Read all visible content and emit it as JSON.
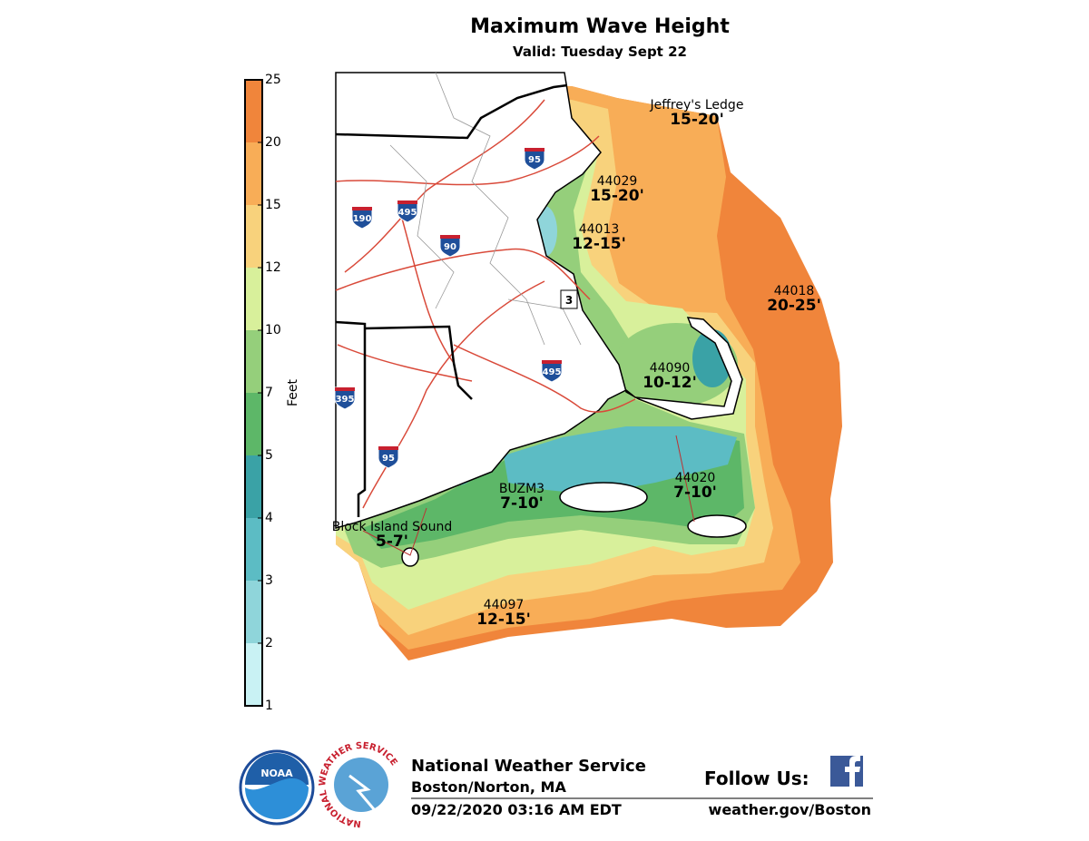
{
  "title": "Maximum Wave Height",
  "subtitle": "Valid: Tuesday Sept 22",
  "colorbar": {
    "label": "Feet",
    "ticks": [
      1,
      2,
      3,
      4,
      5,
      7,
      10,
      12,
      15,
      20,
      25
    ],
    "colors": [
      "#c9f2f4",
      "#8fd5da",
      "#5cbcc4",
      "#3aa2a6",
      "#5db768",
      "#95cf7b",
      "#d8f09b",
      "#f8d27c",
      "#f8ad57",
      "#f0853b"
    ]
  },
  "buoys": [
    {
      "id": "Jeffrey's Ledge",
      "range": "15-20'"
    },
    {
      "id": "44029",
      "range": "15-20'"
    },
    {
      "id": "44013",
      "range": "12-15'"
    },
    {
      "id": "44018",
      "range": "20-25'"
    },
    {
      "id": "44090",
      "range": "10-12'"
    },
    {
      "id": "BUZM3",
      "range": "7-10'"
    },
    {
      "id": "44020",
      "range": "7-10'"
    },
    {
      "id": "Block Island Sound",
      "range": "5-7'"
    },
    {
      "id": "44097",
      "range": "12-15'"
    }
  ],
  "highway_shields": [
    "95",
    "190",
    "495",
    "90",
    "3",
    "495",
    "395",
    "95"
  ],
  "footer": {
    "office": "National Weather Service",
    "location": "Boston/Norton, MA",
    "issued": "09/22/2020 03:16 AM EDT",
    "follow": "Follow Us:",
    "url": "weather.gov/Boston",
    "noaa": "NOAA",
    "nws_ring": "NATIONAL WEATHER SERVICE"
  }
}
